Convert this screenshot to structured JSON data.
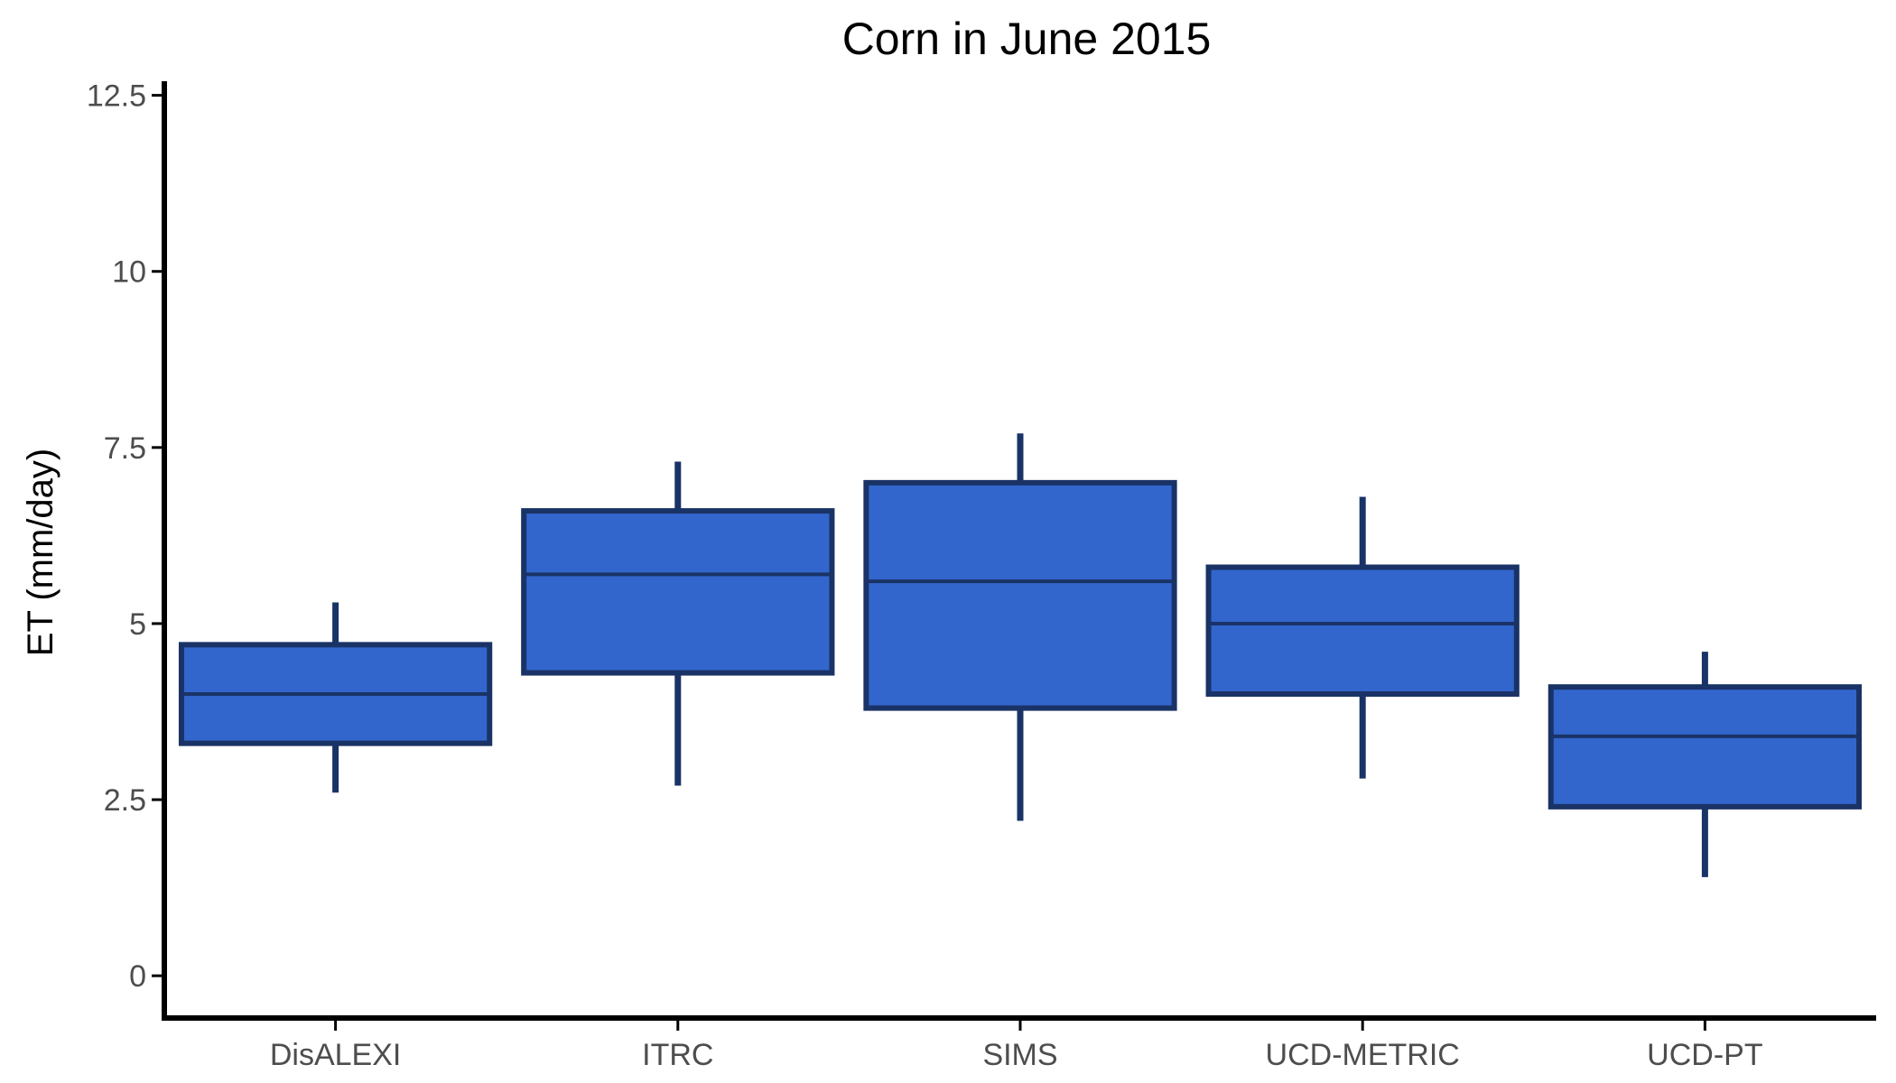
{
  "chart_data": {
    "type": "boxplot",
    "title": "Corn in June 2015",
    "xlabel": "",
    "ylabel": "ET (mm/day)",
    "ylim": [
      -0.6,
      12.7
    ],
    "yticks": [
      0,
      2.5,
      5,
      7.5,
      10,
      12.5
    ],
    "ytick_labels": [
      "0",
      "2.5",
      "5",
      "7.5",
      "10",
      "12.5"
    ],
    "grid": false,
    "legend": "none",
    "categories": [
      "DisALEXI",
      "ITRC",
      "SIMS",
      "UCD-METRIC",
      "UCD-PT"
    ],
    "boxes": [
      {
        "category": "DisALEXI",
        "whisker_low": 2.6,
        "q1": 3.3,
        "median": 4.0,
        "q3": 4.7,
        "whisker_high": 5.3
      },
      {
        "category": "ITRC",
        "whisker_low": 2.7,
        "q1": 4.3,
        "median": 5.7,
        "q3": 6.6,
        "whisker_high": 7.3
      },
      {
        "category": "SIMS",
        "whisker_low": 2.2,
        "q1": 3.8,
        "median": 5.6,
        "q3": 7.0,
        "whisker_high": 7.7
      },
      {
        "category": "UCD-METRIC",
        "whisker_low": 2.8,
        "q1": 4.0,
        "median": 5.0,
        "q3": 5.8,
        "whisker_high": 6.8
      },
      {
        "category": "UCD-PT",
        "whisker_low": 1.4,
        "q1": 2.4,
        "median": 3.4,
        "q3": 4.1,
        "whisker_high": 4.6
      }
    ],
    "colors": {
      "box_fill": "#3366cc",
      "box_stroke": "#1a3366",
      "axis": "#000000",
      "tick_text": "#4d4d4d"
    }
  }
}
